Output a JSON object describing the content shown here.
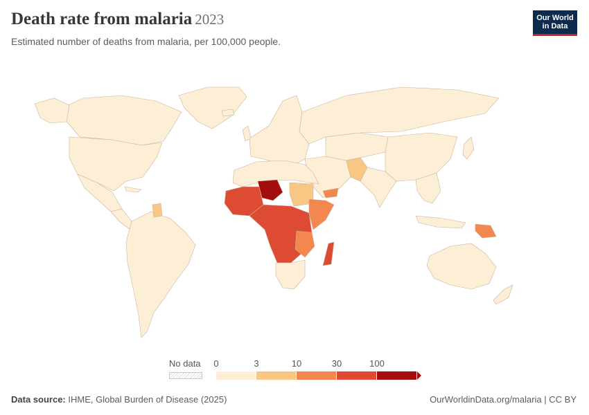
{
  "header": {
    "title": "Death rate from malaria",
    "year": "2023",
    "subtitle": "Estimated number of deaths from malaria, per 100,000 people."
  },
  "logo": {
    "line1": "Our World",
    "line2": "in Data"
  },
  "legend": {
    "no_data_label": "No data",
    "ticks": [
      "0",
      "3",
      "10",
      "30",
      "100"
    ],
    "bins": [
      {
        "from": "0",
        "to": "3",
        "color": "#fdeed6"
      },
      {
        "from": "3",
        "to": "10",
        "color": "#f9c784"
      },
      {
        "from": "10",
        "to": "30",
        "color": "#f4874f"
      },
      {
        "from": "30",
        "to": "100",
        "color": "#de4b34"
      },
      {
        "from": "100",
        "to": "",
        "color": "#a30d0d"
      }
    ]
  },
  "footer": {
    "source_label": "Data source:",
    "source_text": "IHME, Global Burden of Disease (2025)",
    "url_text": "OurWorldinData.org/malaria | CC BY"
  },
  "colors": {
    "land_default": "#fdeed6",
    "border": "#c9b49d",
    "logo_bg": "#0d2a4f",
    "logo_accent": "#c6252b"
  }
}
